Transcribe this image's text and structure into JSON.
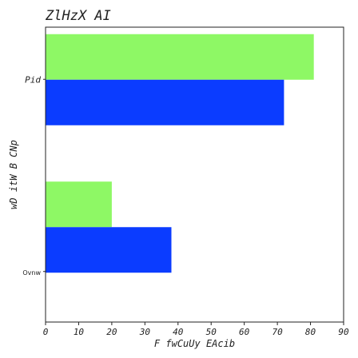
{
  "chart_data": {
    "type": "bar",
    "orientation": "horizontal",
    "title": "ZlHzX AI",
    "xlabel": "F fwCuUy EAcib",
    "ylabel": "wD itW B CNp",
    "categories": [
      "Pid",
      "Ovnw"
    ],
    "xlim": [
      0,
      90
    ],
    "xticks": [
      0,
      10,
      20,
      30,
      40,
      50,
      60,
      70,
      80,
      90
    ],
    "grid": false,
    "legend": "none",
    "series": [
      {
        "values": [
          81,
          20
        ],
        "color": "#8ef865"
      },
      {
        "values": [
          72,
          38
        ],
        "color": "#0b3cff"
      }
    ]
  }
}
